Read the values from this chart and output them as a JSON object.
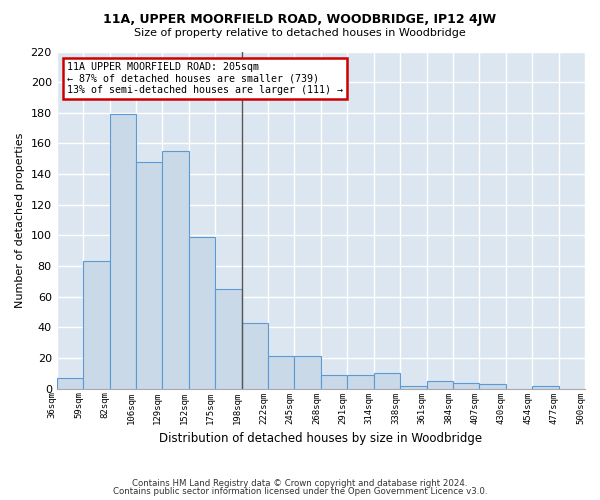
{
  "title1": "11A, UPPER MOORFIELD ROAD, WOODBRIDGE, IP12 4JW",
  "title2": "Size of property relative to detached houses in Woodbridge",
  "xlabel": "Distribution of detached houses by size in Woodbridge",
  "ylabel": "Number of detached properties",
  "footer1": "Contains HM Land Registry data © Crown copyright and database right 2024.",
  "footer2": "Contains public sector information licensed under the Open Government Licence v3.0.",
  "bar_values": [
    7,
    83,
    179,
    148,
    155,
    99,
    65,
    43,
    21,
    21,
    9,
    9,
    10,
    2,
    5,
    4,
    3,
    0,
    2,
    0
  ],
  "x_labels": [
    "36sqm",
    "59sqm",
    "82sqm",
    "106sqm",
    "129sqm",
    "152sqm",
    "175sqm",
    "198sqm",
    "222sqm",
    "245sqm",
    "268sqm",
    "291sqm",
    "314sqm",
    "338sqm",
    "361sqm",
    "384sqm",
    "407sqm",
    "430sqm",
    "454sqm",
    "477sqm",
    "500sqm"
  ],
  "bar_color": "#c9d9e8",
  "bar_edge_color": "#5b9bd5",
  "background_color": "#dce6f0",
  "grid_color": "#ffffff",
  "property_label": "11A UPPER MOORFIELD ROAD: 205sqm",
  "annotation_line1": "← 87% of detached houses are smaller (739)",
  "annotation_line2": "13% of semi-detached houses are larger (111) →",
  "vline_color": "#555555",
  "annotation_box_edge": "#cc0000",
  "ylim": [
    0,
    220
  ],
  "yticks": [
    0,
    20,
    40,
    60,
    80,
    100,
    120,
    140,
    160,
    180,
    200,
    220
  ]
}
